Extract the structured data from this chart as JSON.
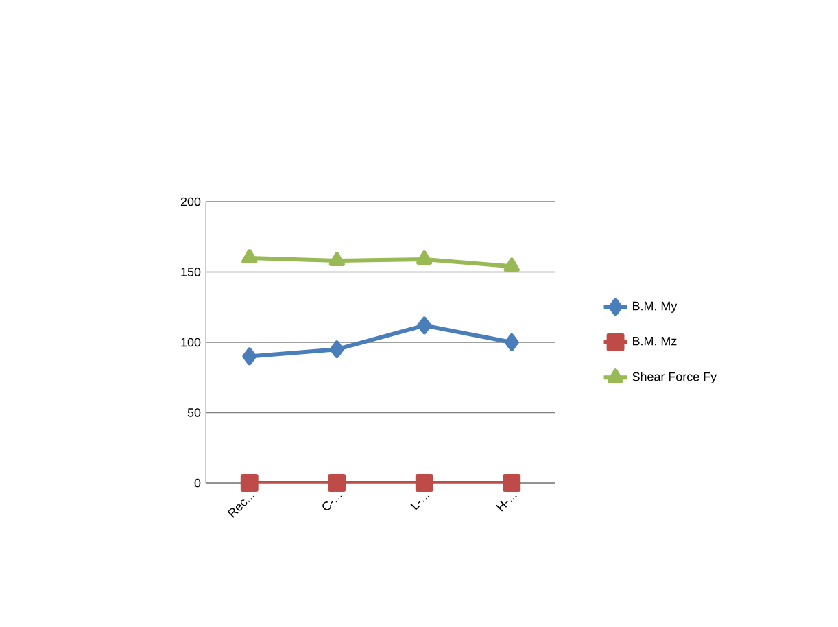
{
  "chart_data": {
    "type": "line",
    "categories": [
      "Rec...",
      "C-...",
      "L-...",
      "H-..."
    ],
    "series": [
      {
        "name": "B.M. My",
        "color": "#4a7ebb",
        "marker": "diamond",
        "values": [
          90,
          95,
          112,
          100
        ]
      },
      {
        "name": "B.M. Mz",
        "color": "#be4b48",
        "marker": "square",
        "values": [
          0,
          0,
          0,
          0
        ]
      },
      {
        "name": "Shear Force  Fy",
        "color": "#98b954",
        "marker": "triangle",
        "values": [
          160,
          158,
          159,
          154
        ]
      }
    ],
    "ylim": [
      0,
      200
    ],
    "yticks": [
      0,
      50,
      100,
      150,
      200
    ],
    "grid": "y",
    "legend": "right",
    "line_style": "solid"
  }
}
